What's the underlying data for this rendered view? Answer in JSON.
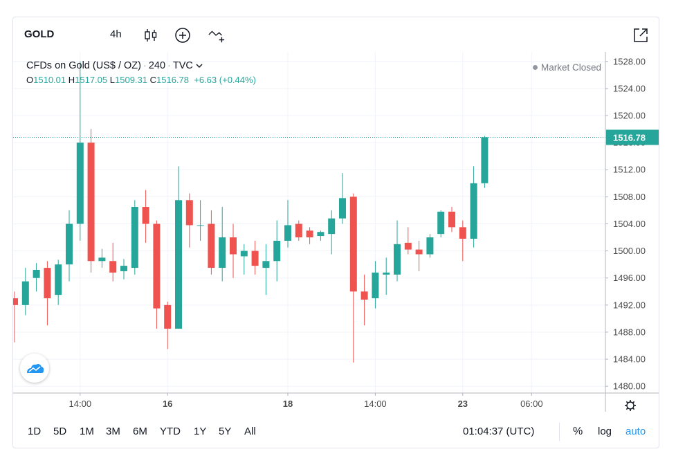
{
  "toolbar": {
    "symbol": "GOLD",
    "interval": "4h",
    "icons": [
      "candles-icon",
      "add-indicator-icon",
      "compare-icon",
      "fullscreen-icon"
    ]
  },
  "legend": {
    "name": "CFDs on Gold (US$ / OZ)",
    "resolution": "240",
    "source": "TVC",
    "open_label": "O",
    "open": "1510.01",
    "high_label": "H",
    "high": "1517.05",
    "low_label": "L",
    "low": "1509.31",
    "close_label": "C",
    "close": "1516.78",
    "change": "+6.63",
    "change_pct": "(+0.44%)",
    "market_status": "Market Closed"
  },
  "bottom": {
    "ranges": [
      "1D",
      "5D",
      "1M",
      "3M",
      "6M",
      "YTD",
      "1Y",
      "5Y",
      "All"
    ],
    "clock": "01:04:37 (UTC)",
    "percent_label": "%",
    "log_label": "log",
    "auto_label": "auto"
  },
  "colors": {
    "up": "#26a69a",
    "down": "#ef5350",
    "accent": "#2196f3"
  },
  "chart_data": {
    "type": "candlestick",
    "ylim": [
      1479,
      1530
    ],
    "y_ticks": [
      1480,
      1484,
      1488,
      1492,
      1496,
      1500,
      1504,
      1508,
      1512,
      1516,
      1520,
      1524,
      1528
    ],
    "y_tick_labels": [
      "1480.00",
      "1484.00",
      "1488.00",
      "1492.00",
      "1496.00",
      "1500.00",
      "1504.00",
      "1508.00",
      "1512.00",
      "1516.00",
      "1520.00",
      "1524.00",
      "1528.00"
    ],
    "x_tick_labels": [
      {
        "label": "14:00",
        "index": 6
      },
      {
        "label": "16",
        "index": 14,
        "bold": true
      },
      {
        "label": "18",
        "index": 25,
        "bold": true
      },
      {
        "label": "14:00",
        "index": 33
      },
      {
        "label": "23",
        "index": 41,
        "bold": true
      },
      {
        "label": "06:00",
        "index": 47.3
      }
    ],
    "last_price": 1516.78,
    "last_price_label": "1516.78",
    "candles": [
      {
        "o": 1493.0,
        "h": 1494.0,
        "l": 1486.5,
        "c": 1492.0
      },
      {
        "o": 1492.0,
        "h": 1497.5,
        "l": 1490.5,
        "c": 1495.5
      },
      {
        "o": 1496.0,
        "h": 1498.2,
        "l": 1494.0,
        "c": 1497.2
      },
      {
        "o": 1497.5,
        "h": 1498.5,
        "l": 1489.0,
        "c": 1493.0
      },
      {
        "o": 1493.5,
        "h": 1498.7,
        "l": 1492.0,
        "c": 1498.0
      },
      {
        "o": 1498.0,
        "h": 1506.0,
        "l": 1495.5,
        "c": 1504.0
      },
      {
        "o": 1504.0,
        "h": 1528.0,
        "l": 1501.5,
        "c": 1516.0
      },
      {
        "o": 1516.0,
        "h": 1518.0,
        "l": 1496.8,
        "c": 1498.5
      },
      {
        "o": 1498.5,
        "h": 1500.3,
        "l": 1497.5,
        "c": 1499.0
      },
      {
        "o": 1498.5,
        "h": 1501.2,
        "l": 1495.5,
        "c": 1496.8
      },
      {
        "o": 1497.0,
        "h": 1498.8,
        "l": 1495.8,
        "c": 1497.8
      },
      {
        "o": 1497.5,
        "h": 1507.5,
        "l": 1496.5,
        "c": 1506.5
      },
      {
        "o": 1506.5,
        "h": 1509.0,
        "l": 1501.2,
        "c": 1504.0
      },
      {
        "o": 1504.0,
        "h": 1504.5,
        "l": 1488.5,
        "c": 1491.5
      },
      {
        "o": 1492.0,
        "h": 1492.5,
        "l": 1485.5,
        "c": 1488.5
      },
      {
        "o": 1488.5,
        "h": 1512.5,
        "l": 1488.5,
        "c": 1507.5
      },
      {
        "o": 1507.5,
        "h": 1508.5,
        "l": 1500.5,
        "c": 1503.8
      },
      {
        "o": 1503.8,
        "h": 1507.5,
        "l": 1501.5,
        "c": 1503.8
      },
      {
        "o": 1504.0,
        "h": 1506.0,
        "l": 1496.5,
        "c": 1497.5
      },
      {
        "o": 1497.5,
        "h": 1506.5,
        "l": 1495.5,
        "c": 1502.0
      },
      {
        "o": 1502.0,
        "h": 1504.0,
        "l": 1496.0,
        "c": 1499.5
      },
      {
        "o": 1499.2,
        "h": 1501.0,
        "l": 1496.5,
        "c": 1500.0
      },
      {
        "o": 1500.0,
        "h": 1501.5,
        "l": 1496.5,
        "c": 1497.8
      },
      {
        "o": 1497.5,
        "h": 1501.0,
        "l": 1493.5,
        "c": 1498.5
      },
      {
        "o": 1498.5,
        "h": 1504.5,
        "l": 1495.5,
        "c": 1501.5
      },
      {
        "o": 1501.5,
        "h": 1507.5,
        "l": 1500.5,
        "c": 1503.8
      },
      {
        "o": 1504.0,
        "h": 1504.5,
        "l": 1501.5,
        "c": 1502.0
      },
      {
        "o": 1503.0,
        "h": 1503.5,
        "l": 1501.0,
        "c": 1502.0
      },
      {
        "o": 1502.2,
        "h": 1503.0,
        "l": 1501.5,
        "c": 1502.8
      },
      {
        "o": 1502.5,
        "h": 1506.0,
        "l": 1499.5,
        "c": 1504.8
      },
      {
        "o": 1504.8,
        "h": 1511.5,
        "l": 1504.0,
        "c": 1507.8
      },
      {
        "o": 1508.0,
        "h": 1508.5,
        "l": 1483.5,
        "c": 1494.0
      },
      {
        "o": 1494.0,
        "h": 1496.5,
        "l": 1489.0,
        "c": 1492.8
      },
      {
        "o": 1493.0,
        "h": 1498.5,
        "l": 1491.5,
        "c": 1496.8
      },
      {
        "o": 1496.5,
        "h": 1499.0,
        "l": 1493.5,
        "c": 1496.8
      },
      {
        "o": 1496.5,
        "h": 1504.5,
        "l": 1495.5,
        "c": 1501.0
      },
      {
        "o": 1501.2,
        "h": 1503.5,
        "l": 1499.5,
        "c": 1500.2
      },
      {
        "o": 1500.2,
        "h": 1501.5,
        "l": 1497.0,
        "c": 1499.5
      },
      {
        "o": 1499.5,
        "h": 1502.5,
        "l": 1499.0,
        "c": 1502.0
      },
      {
        "o": 1502.5,
        "h": 1506.0,
        "l": 1502.0,
        "c": 1505.8
      },
      {
        "o": 1505.8,
        "h": 1506.5,
        "l": 1502.8,
        "c": 1503.5
      },
      {
        "o": 1503.5,
        "h": 1504.5,
        "l": 1498.5,
        "c": 1501.8
      },
      {
        "o": 1501.8,
        "h": 1512.5,
        "l": 1500.5,
        "c": 1510.0
      },
      {
        "o": 1510.0,
        "h": 1517.0,
        "l": 1509.3,
        "c": 1516.8
      }
    ]
  }
}
